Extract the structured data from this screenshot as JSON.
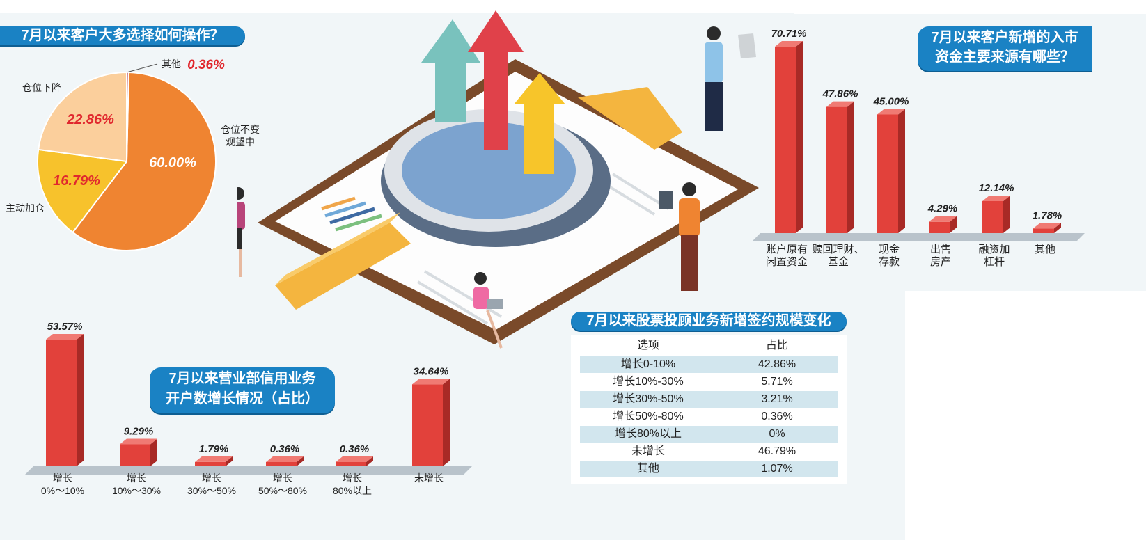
{
  "colors": {
    "pill": "#1a82c4",
    "bar_red": "#e0403a",
    "orange": "#ef8431",
    "yellow": "#f7c22c",
    "peach": "#fbcf9c"
  },
  "pie_title": "7月以来客户大多选择如何操作？",
  "funds_title_line1": "7月以来客户新增的入市",
  "funds_title_line2": "资金主要来源有哪些？",
  "credit_title_line1": "7月以来营业部信用业务",
  "credit_title_line2": "开户数增长情况（占比）",
  "table_title": "7月以来股票投顾业务新增签约规模变化",
  "chart_data": [
    {
      "type": "pie",
      "title": "7月以来客户大多选择如何操作？",
      "slices": [
        {
          "label": "仓位不变观望中",
          "label_line1": "仓位不变",
          "label_line2": "观望中",
          "value": 60.0,
          "value_text": "60.00%",
          "color": "#ef8431"
        },
        {
          "label": "主动加仓",
          "value": 16.79,
          "value_text": "16.79%",
          "color": "#f7c22c"
        },
        {
          "label": "仓位下降",
          "value": 22.86,
          "value_text": "22.86%",
          "color": "#fbcf9c"
        },
        {
          "label": "其他",
          "value": 0.36,
          "value_text": "0.36%",
          "color": "#c9707d"
        }
      ]
    },
    {
      "type": "bar",
      "title": "7月以来客户新增的入市资金主要来源有哪些？",
      "categories": [
        "账户原有闲置资金",
        "赎回理财、基金",
        "现金存款",
        "出售房产",
        "融资加杠杆",
        "其他"
      ],
      "category_lines": [
        [
          "账户原有",
          "闲置资金"
        ],
        [
          "赎回理财、",
          "基金"
        ],
        [
          "现金",
          "存款"
        ],
        [
          "出售",
          "房产"
        ],
        [
          "融资加",
          "杠杆"
        ],
        [
          "其他"
        ]
      ],
      "values": [
        70.71,
        47.86,
        45.0,
        4.29,
        12.14,
        1.78
      ],
      "value_labels": [
        "70.71%",
        "47.86%",
        "45.00%",
        "4.29%",
        "12.14%",
        "1.78%"
      ]
    },
    {
      "type": "bar",
      "title": "7月以来营业部信用业务开户数增长情况（占比）",
      "categories": [
        "增长0%～10%",
        "增长10%～30%",
        "增长30%～50%",
        "增长50%～80%",
        "增长80%以上",
        "未增长"
      ],
      "category_lines": [
        [
          "增长",
          "0%～10%"
        ],
        [
          "增长",
          "10%～30%"
        ],
        [
          "增长",
          "30%～50%"
        ],
        [
          "增长",
          "50%～80%"
        ],
        [
          "增长",
          "80%以上"
        ],
        [
          "未增长"
        ]
      ],
      "values": [
        53.57,
        9.29,
        1.79,
        0.36,
        0.36,
        34.64
      ],
      "value_labels": [
        "53.57%",
        "9.29%",
        "1.79%",
        "0.36%",
        "0.36%",
        "34.64%"
      ]
    },
    {
      "type": "table",
      "title": "7月以来股票投顾业务新增签约规模变化",
      "columns": [
        "选项",
        "占比"
      ],
      "rows": [
        [
          "增长0-10%",
          "42.86%"
        ],
        [
          "增长10%-30%",
          "5.71%"
        ],
        [
          "增长30%-50%",
          "3.21%"
        ],
        [
          "增长50%-80%",
          "0.36%"
        ],
        [
          "增长80%以上",
          "0%"
        ],
        [
          "未增长",
          "46.79%"
        ],
        [
          "其他",
          "1.07%"
        ]
      ]
    }
  ]
}
